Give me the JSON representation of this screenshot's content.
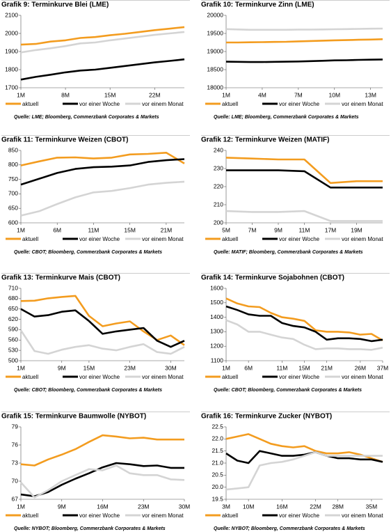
{
  "chart_data": [
    {
      "type": "line",
      "title": "Grafik 9: Terminkurve Blei (LME)",
      "categories": [
        "1M",
        null,
        null,
        "8M",
        null,
        null,
        "15M",
        null,
        null,
        "22M",
        null,
        null
      ],
      "series": [
        {
          "name": "aktuell",
          "color": "#f39c1f",
          "values": [
            1938,
            1942,
            1955,
            1962,
            1975,
            1980,
            1990,
            1998,
            2008,
            2018,
            2026,
            2035
          ]
        },
        {
          "name": "vor einer Woche",
          "color": "#000000",
          "values": [
            1745,
            1760,
            1772,
            1785,
            1795,
            1800,
            1810,
            1820,
            1830,
            1840,
            1848,
            1857
          ]
        },
        {
          "name": "vor einem Monat",
          "color": "#d4d4d4",
          "values": [
            1895,
            1908,
            1918,
            1930,
            1945,
            1950,
            1962,
            1972,
            1982,
            1992,
            2000,
            2008
          ]
        }
      ],
      "ylim": [
        1700,
        2100
      ],
      "yticks": [
        1700,
        1800,
        1900,
        2000,
        2100
      ],
      "source": "Quelle: LME; Bloomberg, Commerzbank Corporates & Markets"
    },
    {
      "type": "line",
      "title": "Grafik 10: Terminkurve Zinn (LME)",
      "categories": [
        "1M",
        null,
        null,
        "4M",
        null,
        null,
        "7M",
        null,
        null,
        "10M",
        null,
        null,
        "13M",
        null
      ],
      "series": [
        {
          "name": "aktuell",
          "color": "#f39c1f",
          "values": [
            19250,
            19250,
            19255,
            19260,
            19265,
            19270,
            19280,
            19290,
            19300,
            19310,
            19315,
            19325,
            19330,
            19340
          ]
        },
        {
          "name": "vor einer Woche",
          "color": "#000000",
          "values": [
            18720,
            18715,
            18710,
            18710,
            18715,
            18720,
            18725,
            18735,
            18745,
            18755,
            18760,
            18770,
            18775,
            18780
          ]
        },
        {
          "name": "vor einem Monat",
          "color": "#d4d4d4",
          "values": [
            19620,
            19610,
            19600,
            19600,
            19600,
            19600,
            19605,
            19605,
            19610,
            19615,
            19620,
            19625,
            19630,
            19635
          ]
        }
      ],
      "ylim": [
        18000,
        20000
      ],
      "yticks": [
        18000,
        18500,
        19000,
        19500,
        20000
      ],
      "source": "Quelle: LME; Bloomberg, Commerzbank Corporates & Markets"
    },
    {
      "type": "line",
      "title": "Grafik 11: Terminkurve Weizen (CBOT)",
      "categories": [
        "1M",
        null,
        "6M",
        null,
        "11M",
        null,
        "15M",
        null,
        "21M",
        null
      ],
      "series": [
        {
          "name": "aktuell",
          "color": "#f39c1f",
          "values": [
            798,
            812,
            825,
            826,
            822,
            825,
            836,
            838,
            842,
            805
          ]
        },
        {
          "name": "vor einer Woche",
          "color": "#000000",
          "values": [
            732,
            752,
            772,
            786,
            792,
            794,
            798,
            810,
            816,
            820
          ]
        },
        {
          "name": "vor einem Monat",
          "color": "#d4d4d4",
          "values": [
            625,
            640,
            665,
            688,
            705,
            710,
            720,
            732,
            738,
            742
          ]
        }
      ],
      "ylim": [
        600,
        850
      ],
      "yticks": [
        600,
        650,
        700,
        750,
        800,
        850
      ],
      "source": "Quelle: CBOT; Bloomberg, Commerzbank Corporates & Markets"
    },
    {
      "type": "line",
      "title": "Grafik 12: Terminkurve Weizen (MATIF)",
      "categories": [
        "5M",
        "7M",
        "9M",
        "11M",
        "17M",
        "19M",
        null
      ],
      "series": [
        {
          "name": "aktuell",
          "color": "#f39c1f",
          "values": [
            236,
            235.5,
            235,
            235,
            222,
            223,
            223
          ]
        },
        {
          "name": "vor einer Woche",
          "color": "#000000",
          "values": [
            229,
            229,
            229,
            228.5,
            219.5,
            219.5,
            219.5
          ]
        },
        {
          "name": "vor einem Monat",
          "color": "#d4d4d4",
          "values": [
            206.5,
            206,
            206,
            206.5,
            201,
            201,
            201
          ]
        }
      ],
      "ylim": [
        200,
        240
      ],
      "yticks": [
        200,
        210,
        220,
        230,
        240
      ],
      "source": "Quelle: MATIF; Bloomberg, Commerzbank Corporates & Markets"
    },
    {
      "type": "line",
      "title": "Grafik 13:  Terminkurve Mais (CBOT)",
      "categories": [
        "1M",
        null,
        null,
        "9M",
        null,
        "15M",
        null,
        null,
        "23M",
        null,
        null,
        "30M",
        null
      ],
      "series": [
        {
          "name": "aktuell",
          "color": "#f39c1f",
          "values": [
            673,
            674,
            681,
            685,
            688,
            630,
            600,
            608,
            614,
            585,
            560,
            573,
            545
          ]
        },
        {
          "name": "vor einer Woche",
          "color": "#000000",
          "values": [
            650,
            628,
            632,
            642,
            646,
            615,
            578,
            585,
            590,
            595,
            558,
            540,
            558
          ]
        },
        {
          "name": "vor einem Monat",
          "color": "#d4d4d4",
          "values": [
            588,
            528,
            520,
            532,
            540,
            545,
            535,
            530,
            540,
            548,
            525,
            520,
            540
          ]
        }
      ],
      "ylim": [
        500,
        710
      ],
      "yticks": [
        500,
        530,
        560,
        590,
        620,
        650,
        680,
        710
      ],
      "source": "Quelle: CBOT; Bloomberg, Commerzbank Corporates & Markets"
    },
    {
      "type": "line",
      "title": "Grafik 14: Terminkurve Sojabohnen (CBOT)",
      "categories": [
        "1M",
        null,
        "6M",
        null,
        null,
        "11M",
        null,
        "15M",
        null,
        "21M",
        null,
        null,
        "26M",
        null,
        "37M"
      ],
      "series": [
        {
          "name": "aktuell",
          "color": "#f39c1f",
          "values": [
            1530,
            1495,
            1475,
            1470,
            1430,
            1400,
            1390,
            1375,
            1310,
            1300,
            1300,
            1295,
            1280,
            1285,
            1240
          ]
        },
        {
          "name": "vor einer Woche",
          "color": "#000000",
          "values": [
            1475,
            1450,
            1420,
            1410,
            1410,
            1360,
            1340,
            1330,
            1300,
            1245,
            1255,
            1255,
            1250,
            1235,
            1245
          ]
        },
        {
          "name": "vor einem Monat",
          "color": "#d4d4d4",
          "values": [
            1380,
            1350,
            1300,
            1300,
            1280,
            1260,
            1250,
            1210,
            1180,
            1185,
            1185,
            1180,
            1180,
            1175,
            1190
          ]
        }
      ],
      "ylim": [
        1100,
        1600
      ],
      "yticks": [
        1100,
        1200,
        1300,
        1400,
        1500,
        1600
      ],
      "source": "Quelle: CBOT; Bloomberg, Commerzbank Corporates & Markets"
    },
    {
      "type": "line",
      "title": "Grafik 15: Terminkurve Baumwolle (NYBOT)",
      "categories": [
        "1M",
        null,
        null,
        "9M",
        null,
        null,
        "16M",
        null,
        null,
        "23M",
        null,
        null,
        "30M"
      ],
      "series": [
        {
          "name": "aktuell",
          "color": "#f39c1f",
          "values": [
            72.8,
            72.6,
            73.6,
            74.4,
            75.3,
            76.5,
            77.6,
            77.4,
            77.1,
            77.2,
            76.9,
            76.9,
            76.9
          ]
        },
        {
          "name": "vor einer Woche",
          "color": "#000000",
          "values": [
            67.8,
            67.5,
            68.2,
            69.4,
            70.4,
            71.3,
            72.3,
            73.0,
            72.8,
            72.5,
            72.6,
            72.2,
            72.2
          ]
        },
        {
          "name": "vor einem Monat",
          "color": "#d4d4d4",
          "values": [
            69.8,
            67.3,
            68.5,
            70.0,
            71.0,
            72.0,
            71.8,
            72.6,
            71.3,
            71.0,
            71.0,
            70.3,
            70.2
          ]
        }
      ],
      "ylim": [
        67,
        79
      ],
      "yticks": [
        67,
        70,
        73,
        76,
        79
      ],
      "source": "Quelle: NYBOT; Bloomberg, Commerzbank Corporates & Markets"
    },
    {
      "type": "line",
      "title": "Grafik 16: Terminkurve Zucker (NYBOT)",
      "categories": [
        "3M",
        null,
        "10M",
        null,
        null,
        "16M",
        null,
        null,
        "22M",
        null,
        "28M",
        null,
        null,
        "35M",
        null
      ],
      "series": [
        {
          "name": "aktuell",
          "color": "#f39c1f",
          "values": [
            22.0,
            22.1,
            22.2,
            22.0,
            21.8,
            21.7,
            21.65,
            21.7,
            21.5,
            21.4,
            21.4,
            21.45,
            21.35,
            21.2,
            21.05
          ]
        },
        {
          "name": "vor einer Woche",
          "color": "#000000",
          "values": [
            21.4,
            21.1,
            21.0,
            21.5,
            21.4,
            21.3,
            21.3,
            21.35,
            21.45,
            21.3,
            21.2,
            21.2,
            21.15,
            21.15,
            21.05
          ]
        },
        {
          "name": "vor einem Monat",
          "color": "#d4d4d4",
          "values": [
            19.9,
            19.95,
            20.0,
            20.9,
            21.0,
            21.05,
            21.15,
            21.3,
            21.45,
            21.3,
            21.3,
            21.3,
            21.3,
            21.3,
            21.3
          ]
        }
      ],
      "ylim": [
        19.5,
        22.5
      ],
      "yticks": [
        19.5,
        {
          "value": 20,
          "label": "20.0"
        },
        20.5,
        {
          "value": 21,
          "label": "21.0"
        },
        21.5,
        {
          "value": 22,
          "label": "22.0"
        },
        22.5
      ],
      "source": "Quelle: NYBOT; Bloomberg, Commerzbank Corporates & Markets"
    }
  ]
}
